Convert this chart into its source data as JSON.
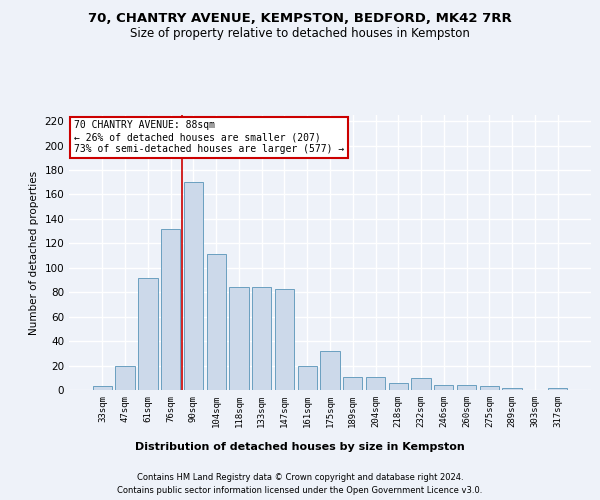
{
  "title1": "70, CHANTRY AVENUE, KEMPSTON, BEDFORD, MK42 7RR",
  "title2": "Size of property relative to detached houses in Kempston",
  "xlabel": "Distribution of detached houses by size in Kempston",
  "ylabel": "Number of detached properties",
  "categories": [
    "33sqm",
    "47sqm",
    "61sqm",
    "76sqm",
    "90sqm",
    "104sqm",
    "118sqm",
    "133sqm",
    "147sqm",
    "161sqm",
    "175sqm",
    "189sqm",
    "204sqm",
    "218sqm",
    "232sqm",
    "246sqm",
    "260sqm",
    "275sqm",
    "289sqm",
    "303sqm",
    "317sqm"
  ],
  "values": [
    3,
    20,
    92,
    132,
    170,
    111,
    84,
    84,
    83,
    20,
    32,
    11,
    11,
    6,
    10,
    4,
    4,
    3,
    2,
    0,
    2
  ],
  "bar_color": "#ccd9ea",
  "bar_edge_color": "#6a9fc0",
  "highlight_line_color": "#cc0000",
  "annotation_title": "70 CHANTRY AVENUE: 88sqm",
  "annotation_line1": "← 26% of detached houses are smaller (207)",
  "annotation_line2": "73% of semi-detached houses are larger (577) →",
  "annotation_box_color": "#ffffff",
  "annotation_box_edge": "#cc0000",
  "ylim": [
    0,
    225
  ],
  "yticks": [
    0,
    20,
    40,
    60,
    80,
    100,
    120,
    140,
    160,
    180,
    200,
    220
  ],
  "footer1": "Contains HM Land Registry data © Crown copyright and database right 2024.",
  "footer2": "Contains public sector information licensed under the Open Government Licence v3.0.",
  "bg_color": "#eef2f9",
  "grid_color": "#ffffff",
  "title1_fontsize": 9.5,
  "title2_fontsize": 8.5,
  "bar_width": 0.85
}
